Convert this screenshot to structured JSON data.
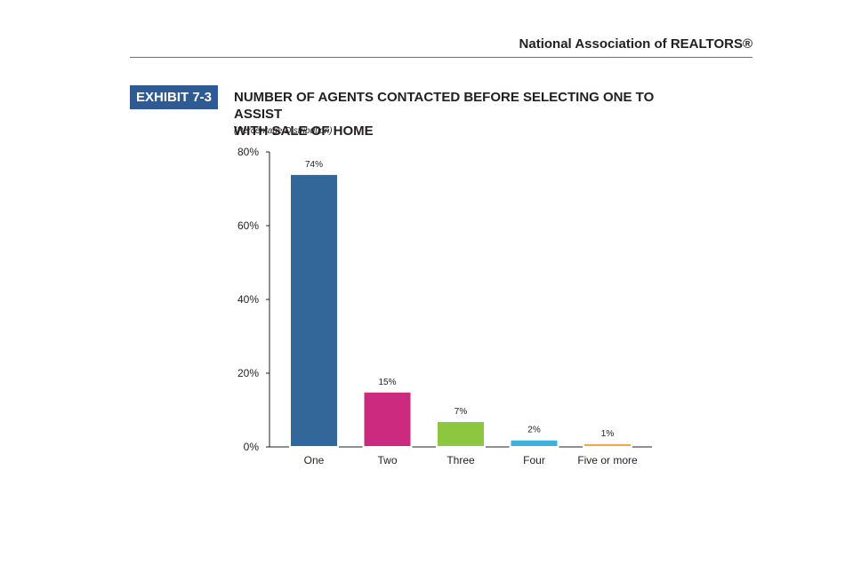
{
  "header": {
    "organization": "National Association of REALTORS®"
  },
  "exhibit": {
    "label": "EXHIBIT 7-3",
    "title_line1": "NUMBER OF AGENTS CONTACTED BEFORE SELECTING ONE TO ASSIST",
    "title_line2": "WITH SALE OF HOME",
    "subtitle": "(Percentage Distribution)"
  },
  "colors": {
    "badge": "#2f5b95",
    "bars": [
      "#336699",
      "#cc2a7e",
      "#8dc63f",
      "#3ab2e0",
      "#f5a54a"
    ]
  },
  "chart_data": {
    "type": "bar",
    "categories": [
      "One",
      "Two",
      "Three",
      "Four",
      "Five or more"
    ],
    "values": [
      74,
      15,
      7,
      2,
      1
    ],
    "value_labels": [
      "74%",
      "15%",
      "7%",
      "2%",
      "1%"
    ],
    "yticks": [
      0,
      20,
      40,
      60,
      80
    ],
    "ytick_labels": [
      "0%",
      "20%",
      "40%",
      "60%",
      "80%"
    ],
    "ylim": [
      0,
      80
    ],
    "title": "",
    "xlabel": "",
    "ylabel": "",
    "grid": false,
    "legend": "none"
  }
}
